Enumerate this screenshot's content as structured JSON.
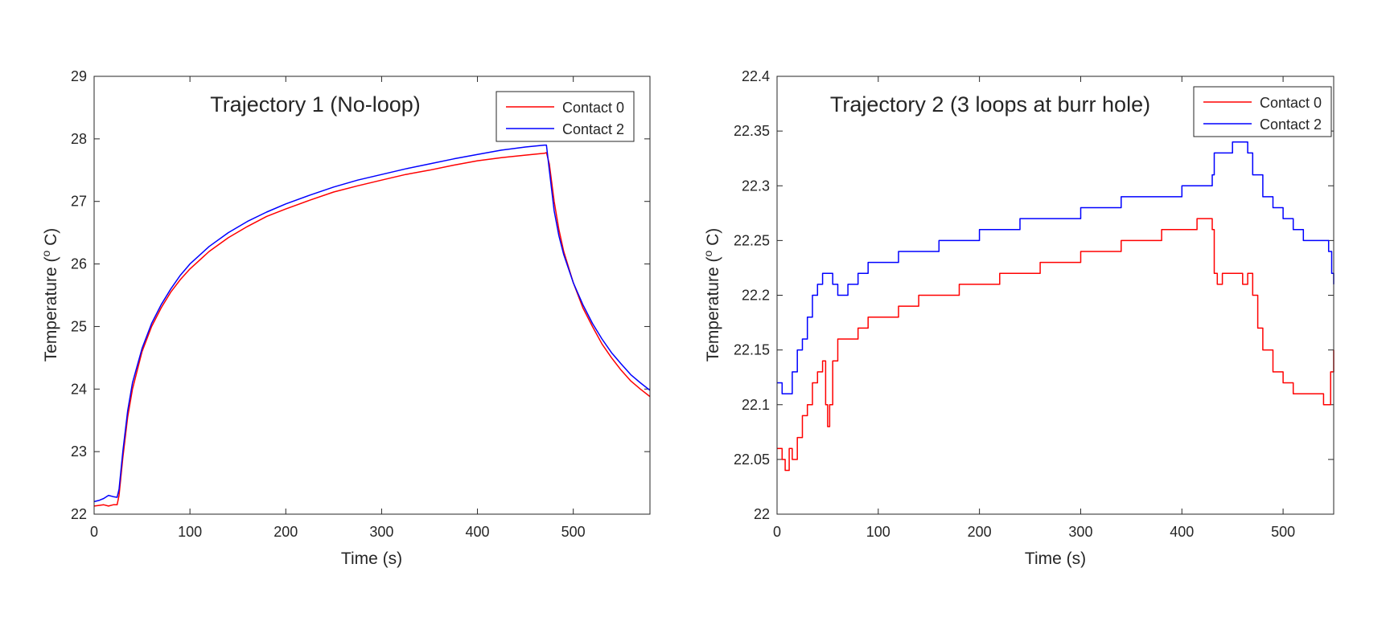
{
  "chart_data": [
    {
      "type": "line",
      "title": "Trajectory 1 (No-loop)",
      "xlabel": "Time (s)",
      "ylabel_main": "Temperature (",
      "ylabel_sup": "o",
      "ylabel_tail": " C)",
      "xlim": [
        0,
        580
      ],
      "ylim": [
        22,
        29
      ],
      "xticks": [
        0,
        100,
        200,
        300,
        400,
        500
      ],
      "yticks": [
        22,
        23,
        24,
        25,
        26,
        27,
        28,
        29
      ],
      "xtick_labels": [
        "0",
        "100",
        "200",
        "300",
        "400",
        "500"
      ],
      "ytick_labels": [
        "22",
        "23",
        "24",
        "25",
        "26",
        "27",
        "28",
        "29"
      ],
      "legend_position": "top-right",
      "series": [
        {
          "name": "Contact 0",
          "color": "#ff0000",
          "x": [
            0,
            5,
            10,
            15,
            20,
            24,
            26,
            30,
            35,
            40,
            50,
            60,
            70,
            80,
            90,
            100,
            120,
            140,
            160,
            180,
            200,
            225,
            250,
            275,
            300,
            325,
            350,
            375,
            400,
            425,
            450,
            470,
            472,
            475,
            480,
            485,
            490,
            500,
            510,
            520,
            530,
            540,
            550,
            560,
            570,
            580
          ],
          "y": [
            22.13,
            22.14,
            22.15,
            22.13,
            22.15,
            22.15,
            22.3,
            22.9,
            23.55,
            24.0,
            24.6,
            25.0,
            25.3,
            25.55,
            25.75,
            25.92,
            26.2,
            26.42,
            26.6,
            26.76,
            26.88,
            27.02,
            27.15,
            27.25,
            27.34,
            27.43,
            27.5,
            27.58,
            27.65,
            27.7,
            27.74,
            27.77,
            27.78,
            27.6,
            27.0,
            26.55,
            26.2,
            25.7,
            25.3,
            25.0,
            24.72,
            24.5,
            24.3,
            24.13,
            24.0,
            23.88
          ]
        },
        {
          "name": "Contact 2",
          "color": "#0000ff",
          "x": [
            0,
            5,
            10,
            15,
            20,
            24,
            26,
            30,
            35,
            40,
            50,
            60,
            70,
            80,
            90,
            100,
            120,
            140,
            160,
            180,
            200,
            225,
            250,
            275,
            300,
            325,
            350,
            375,
            400,
            425,
            450,
            470,
            472,
            475,
            480,
            485,
            490,
            500,
            510,
            520,
            530,
            540,
            550,
            560,
            570,
            580
          ],
          "y": [
            22.2,
            22.22,
            22.25,
            22.3,
            22.28,
            22.27,
            22.4,
            23.0,
            23.65,
            24.1,
            24.65,
            25.05,
            25.35,
            25.6,
            25.82,
            26.0,
            26.28,
            26.5,
            26.68,
            26.83,
            26.96,
            27.1,
            27.23,
            27.34,
            27.43,
            27.52,
            27.6,
            27.68,
            27.75,
            27.82,
            27.87,
            27.9,
            27.9,
            27.5,
            26.85,
            26.45,
            26.15,
            25.7,
            25.35,
            25.05,
            24.8,
            24.58,
            24.4,
            24.23,
            24.1,
            23.98
          ]
        }
      ]
    },
    {
      "type": "line",
      "title": "Trajectory 2 (3 loops at burr hole)",
      "xlabel": "Time (s)",
      "ylabel_main": "Temperature (",
      "ylabel_sup": "o",
      "ylabel_tail": " C)",
      "xlim": [
        0,
        550
      ],
      "ylim": [
        22,
        22.4
      ],
      "xticks": [
        0,
        100,
        200,
        300,
        400,
        500
      ],
      "yticks": [
        22,
        22.05,
        22.1,
        22.15,
        22.2,
        22.25,
        22.3,
        22.35,
        22.4
      ],
      "xtick_labels": [
        "0",
        "100",
        "200",
        "300",
        "400",
        "500"
      ],
      "ytick_labels": [
        "22",
        "22.05",
        "22.1",
        "22.15",
        "22.2",
        "22.25",
        "22.3",
        "22.35",
        "22.4"
      ],
      "legend_position": "top-right",
      "series": [
        {
          "name": "Contact 0",
          "color": "#ff0000",
          "x": [
            0,
            5,
            8,
            12,
            15,
            20,
            25,
            30,
            35,
            40,
            45,
            48,
            50,
            52,
            55,
            60,
            70,
            80,
            90,
            100,
            120,
            140,
            160,
            180,
            200,
            220,
            240,
            260,
            280,
            300,
            320,
            340,
            360,
            380,
            400,
            415,
            425,
            430,
            432,
            435,
            440,
            450,
            460,
            465,
            470,
            475,
            480,
            490,
            500,
            510,
            520,
            530,
            540,
            545,
            547,
            550
          ],
          "y": [
            22.06,
            22.05,
            22.04,
            22.06,
            22.05,
            22.07,
            22.09,
            22.1,
            22.12,
            22.13,
            22.14,
            22.1,
            22.08,
            22.1,
            22.14,
            22.16,
            22.16,
            22.17,
            22.18,
            22.18,
            22.19,
            22.2,
            22.2,
            22.21,
            22.21,
            22.22,
            22.22,
            22.23,
            22.23,
            22.24,
            22.24,
            22.25,
            22.25,
            22.26,
            22.26,
            22.27,
            22.27,
            22.26,
            22.22,
            22.21,
            22.22,
            22.22,
            22.21,
            22.22,
            22.2,
            22.17,
            22.15,
            22.13,
            22.12,
            22.11,
            22.11,
            22.11,
            22.1,
            22.1,
            22.13,
            22.15
          ]
        },
        {
          "name": "Contact 2",
          "color": "#0000ff",
          "x": [
            0,
            5,
            10,
            15,
            20,
            25,
            30,
            35,
            40,
            45,
            50,
            55,
            60,
            65,
            70,
            80,
            90,
            100,
            120,
            140,
            160,
            180,
            200,
            220,
            240,
            260,
            280,
            300,
            320,
            340,
            360,
            380,
            400,
            420,
            430,
            432,
            440,
            450,
            460,
            465,
            470,
            480,
            490,
            500,
            510,
            520,
            540,
            545,
            548,
            550
          ],
          "y": [
            22.12,
            22.11,
            22.11,
            22.13,
            22.15,
            22.16,
            22.18,
            22.2,
            22.21,
            22.22,
            22.22,
            22.21,
            22.2,
            22.2,
            22.21,
            22.22,
            22.23,
            22.23,
            22.24,
            22.24,
            22.25,
            22.25,
            22.26,
            22.26,
            22.27,
            22.27,
            22.27,
            22.28,
            22.28,
            22.29,
            22.29,
            22.29,
            22.3,
            22.3,
            22.31,
            22.33,
            22.33,
            22.34,
            22.34,
            22.33,
            22.31,
            22.29,
            22.28,
            22.27,
            22.26,
            22.25,
            22.25,
            22.24,
            22.22,
            22.21
          ]
        }
      ]
    }
  ]
}
